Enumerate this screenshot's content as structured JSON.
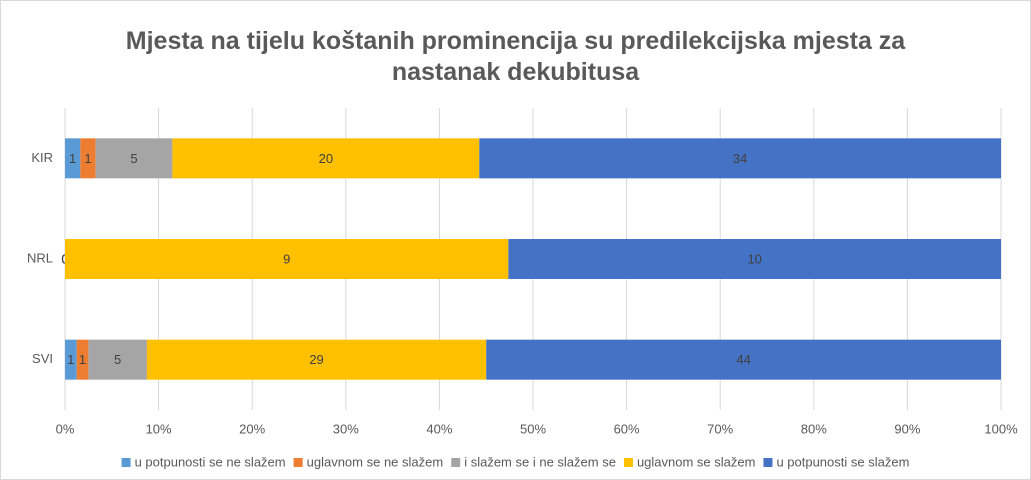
{
  "chart_data": {
    "type": "bar",
    "orientation": "horizontal",
    "stacking": "percent",
    "title": "Mjesta na tijelu koštanih prominencija su predilekcijska mjesta za nastanak dekubitusa",
    "categories": [
      "KIR",
      "NRL",
      "SVI"
    ],
    "series": [
      {
        "name": "u potpunosti se ne slažem",
        "color": "#5b9bd5",
        "values": [
          1,
          0,
          1
        ]
      },
      {
        "name": "uglavnom se ne slažem",
        "color": "#ed7d31",
        "values": [
          1,
          0,
          1
        ]
      },
      {
        "name": "i slažem se i ne slažem se",
        "color": "#a5a5a5",
        "values": [
          5,
          0,
          5
        ]
      },
      {
        "name": "uglavnom se slažem",
        "color": "#ffc000",
        "values": [
          20,
          9,
          29
        ]
      },
      {
        "name": "u potpunosti se slažem",
        "color": "#4472c4",
        "values": [
          34,
          10,
          44
        ]
      }
    ],
    "xlim": [
      0,
      100
    ],
    "xticks": [
      {
        "value": 0,
        "label": "0%"
      },
      {
        "value": 10,
        "label": "10%"
      },
      {
        "value": 20,
        "label": "20%"
      },
      {
        "value": 30,
        "label": "30%"
      },
      {
        "value": 40,
        "label": "40%"
      },
      {
        "value": 50,
        "label": "50%"
      },
      {
        "value": 60,
        "label": "60%"
      },
      {
        "value": 70,
        "label": "70%"
      },
      {
        "value": 80,
        "label": "80%"
      },
      {
        "value": 90,
        "label": "90%"
      },
      {
        "value": 100,
        "label": "100%"
      }
    ],
    "grid": true,
    "legend": "bottom"
  }
}
